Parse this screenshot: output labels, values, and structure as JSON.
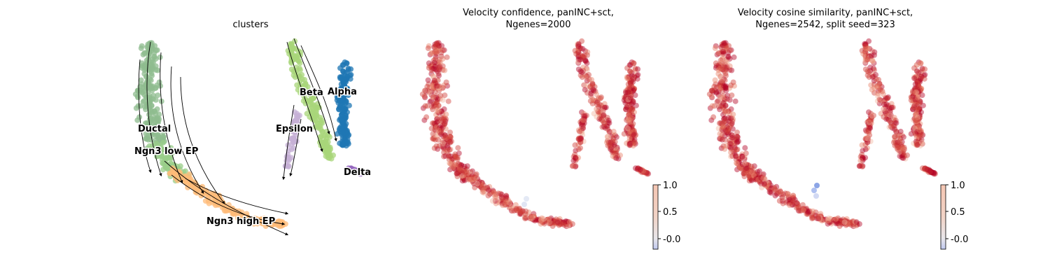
{
  "panels": [
    {
      "title": "clusters"
    },
    {
      "title": "Velocity confidence, panINC+sct,\nNgenes=2000"
    },
    {
      "title": "Velocity cosine similarity, panINC+sct,\nNgenes=2542, split seed=323"
    }
  ],
  "chart_data": [
    {
      "type": "scatter",
      "title": "clusters",
      "description_kind": "UMAP embedding with RNA velocity streamlines",
      "legend": "on data",
      "clusters": [
        {
          "name": "Ductal",
          "color": "#8fbc8f"
        },
        {
          "name": "Ngn3 low EP",
          "color": "#9acd8a"
        },
        {
          "name": "Ngn3 high EP",
          "color": "#ffbb78"
        },
        {
          "name": "Beta",
          "color": "#a8d67a"
        },
        {
          "name": "Alpha",
          "color": "#1f77b4"
        },
        {
          "name": "Epsilon",
          "color": "#c5b0d5"
        },
        {
          "name": "Delta",
          "color": "#9467bd"
        }
      ]
    },
    {
      "type": "scatter",
      "title": "Velocity confidence, panINC+sct,\nNgenes=2000",
      "colormap": "coolwarm",
      "colorbar": {
        "ticks": [
          "-0.0",
          "0.5",
          "1.0"
        ],
        "range": [
          -0.2,
          1.0
        ]
      }
    },
    {
      "type": "scatter",
      "title": "Velocity cosine similarity, panINC+sct,\nNgenes=2542, split seed=323",
      "colormap": "coolwarm",
      "colorbar": {
        "ticks": [
          "-0.0",
          "0.5",
          "1.0"
        ],
        "range": [
          -0.2,
          1.0
        ]
      }
    }
  ]
}
